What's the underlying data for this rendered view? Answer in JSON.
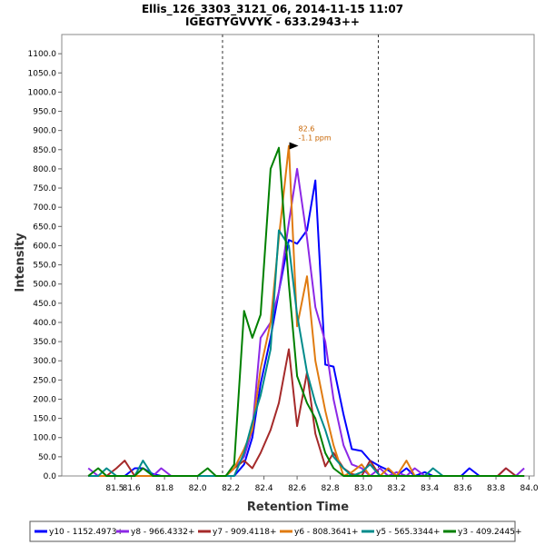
{
  "chart_data": {
    "type": "line",
    "title": "Ellis_126_3303_3121_06, 2014-11-15 11:07",
    "subtitle": "IGEGTYGVVYK - 633.2943++",
    "xlabel": "Retention Time",
    "ylabel": "Intensity",
    "xlim": [
      81.18,
      84.03
    ],
    "ylim": [
      0,
      1150
    ],
    "xticks": [
      81.5,
      81.6,
      81.8,
      82.0,
      82.2,
      82.4,
      82.6,
      82.8,
      83.0,
      83.2,
      83.4,
      83.6,
      83.8,
      84.0
    ],
    "xtick_labels": [
      "81.5",
      "81.6",
      "81.8",
      "82.0",
      "82.2",
      "82.4",
      "82.6",
      "82.8",
      "83.0",
      "83.2",
      "83.4",
      "83.6",
      "83.8",
      "84.0"
    ],
    "yticks": [
      0,
      50,
      100,
      150,
      200,
      250,
      300,
      350,
      400,
      450,
      500,
      550,
      600,
      650,
      700,
      750,
      800,
      850,
      900,
      950,
      1000,
      1050,
      1100
    ],
    "ytick_labels": [
      "0.0",
      "50.0",
      "100.0",
      "150.0",
      "200.0",
      "250.0",
      "300.0",
      "350.0",
      "400.0",
      "450.0",
      "500.0",
      "550.0",
      "600.0",
      "650.0",
      "700.0",
      "750.0",
      "800.0",
      "850.0",
      "900.0",
      "950.0",
      "1000.0",
      "1050.0",
      "1100.0"
    ],
    "vlines": [
      82.15,
      83.09
    ],
    "annotation": {
      "x": 82.63,
      "y": 860,
      "line1": "82.6",
      "line2": "-1.1 ppm",
      "color": "#c86400"
    },
    "series": [
      {
        "name": "y10 - 1152.4973+",
        "color": "#0000ff",
        "x": [
          81.34,
          81.4,
          81.45,
          81.51,
          81.56,
          81.62,
          81.67,
          81.73,
          81.78,
          81.84,
          81.89,
          81.95,
          82.0,
          82.06,
          82.11,
          82.17,
          82.22,
          82.28,
          82.33,
          82.38,
          82.44,
          82.49,
          82.55,
          82.6,
          82.66,
          82.71,
          82.77,
          82.82,
          82.88,
          82.93,
          82.99,
          83.04,
          83.1,
          83.15,
          83.2,
          83.26,
          83.31,
          83.37,
          83.42,
          83.48,
          83.53,
          83.59,
          83.64,
          83.7,
          83.75,
          83.81,
          83.86,
          83.92,
          83.97
        ],
        "y": [
          0,
          0,
          0,
          0,
          0,
          20,
          20,
          5,
          0,
          0,
          0,
          0,
          0,
          0,
          0,
          0,
          0,
          30,
          100,
          240,
          360,
          480,
          615,
          605,
          640,
          770,
          290,
          285,
          160,
          70,
          65,
          40,
          25,
          15,
          0,
          20,
          0,
          10,
          0,
          0,
          0,
          0,
          20,
          0,
          0,
          0,
          0,
          0,
          0
        ]
      },
      {
        "name": "y8 - 966.4332+",
        "color": "#8c28e6",
        "x": [
          81.34,
          81.4,
          81.45,
          81.51,
          81.56,
          81.62,
          81.67,
          81.73,
          81.78,
          81.84,
          81.89,
          81.95,
          82.0,
          82.06,
          82.11,
          82.17,
          82.22,
          82.28,
          82.33,
          82.38,
          82.44,
          82.49,
          82.55,
          82.6,
          82.66,
          82.71,
          82.77,
          82.82,
          82.88,
          82.93,
          82.99,
          83.04,
          83.1,
          83.15,
          83.2,
          83.26,
          83.31,
          83.37,
          83.42,
          83.48,
          83.53,
          83.59,
          83.64,
          83.7,
          83.75,
          83.81,
          83.86,
          83.92,
          83.97
        ],
        "y": [
          20,
          0,
          0,
          0,
          0,
          0,
          0,
          0,
          20,
          0,
          0,
          0,
          0,
          0,
          0,
          0,
          20,
          50,
          120,
          360,
          400,
          480,
          660,
          800,
          620,
          440,
          350,
          200,
          80,
          30,
          20,
          0,
          20,
          0,
          10,
          0,
          20,
          0,
          0,
          0,
          0,
          0,
          0,
          0,
          0,
          0,
          20,
          0,
          20
        ]
      },
      {
        "name": "y7 - 909.4118+",
        "color": "#a52a2a",
        "x": [
          81.34,
          81.4,
          81.45,
          81.51,
          81.56,
          81.62,
          81.67,
          81.73,
          81.78,
          81.84,
          81.89,
          81.95,
          82.0,
          82.06,
          82.11,
          82.17,
          82.22,
          82.28,
          82.33,
          82.38,
          82.44,
          82.49,
          82.55,
          82.6,
          82.66,
          82.71,
          82.77,
          82.82,
          82.88,
          82.93,
          82.99,
          83.04,
          83.1,
          83.15,
          83.2,
          83.26,
          83.31,
          83.37,
          83.42,
          83.48,
          83.53,
          83.59,
          83.64,
          83.7,
          83.75,
          83.81,
          83.86,
          83.92,
          83.97
        ],
        "y": [
          0,
          0,
          0,
          20,
          40,
          0,
          0,
          0,
          0,
          0,
          0,
          0,
          0,
          0,
          0,
          0,
          20,
          40,
          20,
          60,
          120,
          190,
          330,
          130,
          270,
          110,
          25,
          60,
          20,
          5,
          0,
          40,
          0,
          0,
          0,
          0,
          0,
          0,
          0,
          0,
          0,
          0,
          0,
          0,
          0,
          0,
          20,
          0,
          0
        ]
      },
      {
        "name": "y6 - 808.3641+",
        "color": "#e07b10",
        "x": [
          81.34,
          81.4,
          81.45,
          81.51,
          81.56,
          81.62,
          81.67,
          81.73,
          81.78,
          81.84,
          81.89,
          81.95,
          82.0,
          82.06,
          82.11,
          82.17,
          82.22,
          82.28,
          82.33,
          82.38,
          82.44,
          82.49,
          82.55,
          82.6,
          82.66,
          82.71,
          82.77,
          82.82,
          82.88,
          82.93,
          82.99,
          83.04,
          83.1,
          83.15,
          83.2,
          83.26,
          83.31,
          83.37,
          83.42,
          83.48,
          83.53,
          83.59,
          83.64,
          83.7,
          83.75,
          83.81,
          83.86,
          83.92,
          83.97
        ],
        "y": [
          0,
          0,
          0,
          0,
          0,
          0,
          0,
          0,
          0,
          0,
          0,
          0,
          0,
          0,
          0,
          0,
          20,
          70,
          120,
          280,
          400,
          620,
          860,
          390,
          520,
          300,
          170,
          80,
          0,
          10,
          30,
          0,
          0,
          20,
          0,
          40,
          0,
          0,
          0,
          0,
          0,
          0,
          0,
          0,
          0,
          0,
          0,
          0,
          0
        ]
      },
      {
        "name": "y5 - 565.3344+",
        "color": "#008b8b",
        "x": [
          81.34,
          81.4,
          81.45,
          81.51,
          81.56,
          81.62,
          81.67,
          81.73,
          81.78,
          81.84,
          81.89,
          81.95,
          82.0,
          82.06,
          82.11,
          82.17,
          82.22,
          82.28,
          82.33,
          82.38,
          82.44,
          82.49,
          82.55,
          82.6,
          82.66,
          82.71,
          82.77,
          82.82,
          82.88,
          82.93,
          82.99,
          83.04,
          83.1,
          83.15,
          83.2,
          83.26,
          83.31,
          83.37,
          83.42,
          83.48,
          83.53,
          83.59,
          83.64,
          83.7,
          83.75,
          83.81,
          83.86,
          83.92,
          83.97
        ],
        "y": [
          0,
          0,
          20,
          0,
          0,
          0,
          40,
          0,
          0,
          0,
          0,
          0,
          0,
          0,
          0,
          0,
          0,
          60,
          140,
          210,
          330,
          640,
          600,
          420,
          270,
          190,
          120,
          50,
          20,
          0,
          10,
          30,
          0,
          0,
          0,
          0,
          0,
          0,
          20,
          0,
          0,
          0,
          0,
          0,
          0,
          0,
          0,
          0,
          0
        ]
      },
      {
        "name": "y3 - 409.2445+",
        "color": "#008000",
        "x": [
          81.34,
          81.4,
          81.45,
          81.51,
          81.56,
          81.62,
          81.67,
          81.73,
          81.78,
          81.84,
          81.89,
          81.95,
          82.0,
          82.06,
          82.11,
          82.17,
          82.22,
          82.28,
          82.33,
          82.38,
          82.44,
          82.49,
          82.55,
          82.6,
          82.66,
          82.71,
          82.77,
          82.82,
          82.88,
          82.93,
          82.99,
          83.04,
          83.1,
          83.15,
          83.2,
          83.26,
          83.31,
          83.37,
          83.42,
          83.48,
          83.53,
          83.59,
          83.64,
          83.7,
          83.75,
          83.81,
          83.86,
          83.92,
          83.97
        ],
        "y": [
          0,
          20,
          0,
          0,
          0,
          0,
          20,
          0,
          0,
          0,
          0,
          0,
          0,
          20,
          0,
          0,
          30,
          430,
          360,
          420,
          800,
          855,
          500,
          260,
          190,
          150,
          60,
          20,
          0,
          0,
          0,
          0,
          0,
          0,
          0,
          0,
          0,
          0,
          0,
          0,
          0,
          0,
          0,
          0,
          0,
          0,
          0,
          0,
          0
        ]
      }
    ]
  }
}
